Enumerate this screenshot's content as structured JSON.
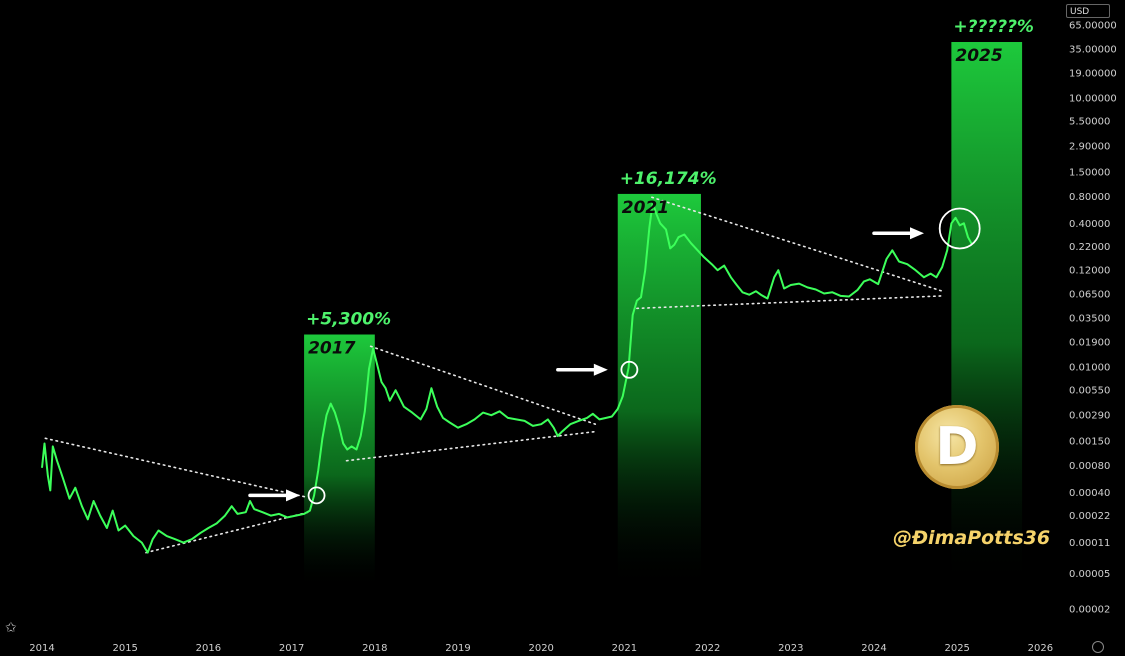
{
  "currency": "USD",
  "handle": "@ĐimaPotts36",
  "coin_letter": "D",
  "icons": [
    "tradingview-logo-icon",
    "dogecoin-logo-icon",
    "settings-icon",
    "arrow-right-icon"
  ],
  "colors": {
    "line": "#3cff5a",
    "band": "#19c23a",
    "background": "#000000",
    "handle": "#f5d36a"
  },
  "chart_data": {
    "type": "line",
    "yscale": "log",
    "ylim": [
      2e-05,
      65
    ],
    "xlim": [
      2014.0,
      2026.3
    ],
    "y_ticks": [
      "65.00000",
      "35.00000",
      "19.00000",
      "10.00000",
      "5.50000",
      "2.90000",
      "1.50000",
      "0.80000",
      "0.40000",
      "0.22000",
      "0.12000",
      "0.06500",
      "0.03500",
      "0.01900",
      "0.01000",
      "0.00550",
      "0.00290",
      "0.00150",
      "0.00080",
      "0.00040",
      "0.00022",
      "0.00011",
      "0.00005",
      "0.00002"
    ],
    "x_ticks": [
      "2014",
      "2015",
      "2016",
      "2017",
      "2018",
      "2019",
      "2020",
      "2021",
      "2022",
      "2023",
      "2024",
      "2025",
      "2026"
    ],
    "series": [
      {
        "points": [
          [
            2014.0,
            0.00075
          ],
          [
            2014.03,
            0.0014
          ],
          [
            2014.07,
            0.00062
          ],
          [
            2014.1,
            0.00042
          ],
          [
            2014.13,
            0.0013
          ],
          [
            2014.18,
            0.0009
          ],
          [
            2014.25,
            0.00058
          ],
          [
            2014.33,
            0.00034
          ],
          [
            2014.4,
            0.00045
          ],
          [
            2014.48,
            0.00028
          ],
          [
            2014.55,
            0.0002
          ],
          [
            2014.62,
            0.00032
          ],
          [
            2014.7,
            0.00022
          ],
          [
            2014.78,
            0.00016
          ],
          [
            2014.85,
            0.00025
          ],
          [
            2014.92,
            0.00015
          ],
          [
            2015.0,
            0.00017
          ],
          [
            2015.1,
            0.00013
          ],
          [
            2015.2,
            0.00011
          ],
          [
            2015.27,
            8.5e-05
          ],
          [
            2015.33,
            0.00012
          ],
          [
            2015.4,
            0.00015
          ],
          [
            2015.5,
            0.00013
          ],
          [
            2015.6,
            0.00012
          ],
          [
            2015.7,
            0.00011
          ],
          [
            2015.8,
            0.00012
          ],
          [
            2015.9,
            0.00014
          ],
          [
            2016.0,
            0.00016
          ],
          [
            2016.1,
            0.00018
          ],
          [
            2016.2,
            0.00022
          ],
          [
            2016.28,
            0.00028
          ],
          [
            2016.35,
            0.00023
          ],
          [
            2016.45,
            0.00024
          ],
          [
            2016.5,
            0.00032
          ],
          [
            2016.55,
            0.00026
          ],
          [
            2016.65,
            0.00024
          ],
          [
            2016.75,
            0.00022
          ],
          [
            2016.85,
            0.00023
          ],
          [
            2016.95,
            0.00021
          ],
          [
            2017.05,
            0.00022
          ],
          [
            2017.15,
            0.00023
          ],
          [
            2017.22,
            0.00025
          ],
          [
            2017.27,
            0.00037
          ],
          [
            2017.32,
            0.0007
          ],
          [
            2017.37,
            0.0016
          ],
          [
            2017.42,
            0.0029
          ],
          [
            2017.47,
            0.0039
          ],
          [
            2017.52,
            0.0031
          ],
          [
            2017.57,
            0.0022
          ],
          [
            2017.62,
            0.0014
          ],
          [
            2017.67,
            0.0012
          ],
          [
            2017.72,
            0.0013
          ],
          [
            2017.78,
            0.0012
          ],
          [
            2017.83,
            0.0017
          ],
          [
            2017.88,
            0.0032
          ],
          [
            2017.93,
            0.0095
          ],
          [
            2017.98,
            0.016
          ],
          [
            2018.03,
            0.0105
          ],
          [
            2018.08,
            0.0068
          ],
          [
            2018.13,
            0.0058
          ],
          [
            2018.18,
            0.0042
          ],
          [
            2018.25,
            0.0055
          ],
          [
            2018.35,
            0.0036
          ],
          [
            2018.45,
            0.0031
          ],
          [
            2018.55,
            0.0026
          ],
          [
            2018.62,
            0.0034
          ],
          [
            2018.68,
            0.0058
          ],
          [
            2018.75,
            0.0036
          ],
          [
            2018.82,
            0.0027
          ],
          [
            2018.9,
            0.0024
          ],
          [
            2019.0,
            0.0021
          ],
          [
            2019.1,
            0.0023
          ],
          [
            2019.2,
            0.0026
          ],
          [
            2019.3,
            0.0031
          ],
          [
            2019.4,
            0.0029
          ],
          [
            2019.5,
            0.0032
          ],
          [
            2019.6,
            0.0027
          ],
          [
            2019.7,
            0.0026
          ],
          [
            2019.8,
            0.0025
          ],
          [
            2019.9,
            0.0022
          ],
          [
            2020.0,
            0.0023
          ],
          [
            2020.08,
            0.0026
          ],
          [
            2020.15,
            0.0021
          ],
          [
            2020.2,
            0.0017
          ],
          [
            2020.25,
            0.0019
          ],
          [
            2020.35,
            0.0023
          ],
          [
            2020.45,
            0.0025
          ],
          [
            2020.55,
            0.0027
          ],
          [
            2020.62,
            0.003
          ],
          [
            2020.7,
            0.0026
          ],
          [
            2020.78,
            0.0027
          ],
          [
            2020.85,
            0.0028
          ],
          [
            2020.92,
            0.0034
          ],
          [
            2020.98,
            0.0047
          ],
          [
            2021.05,
            0.0098
          ],
          [
            2021.1,
            0.038
          ],
          [
            2021.15,
            0.055
          ],
          [
            2021.2,
            0.06
          ],
          [
            2021.25,
            0.12
          ],
          [
            2021.3,
            0.36
          ],
          [
            2021.34,
            0.68
          ],
          [
            2021.38,
            0.52
          ],
          [
            2021.43,
            0.4
          ],
          [
            2021.5,
            0.34
          ],
          [
            2021.55,
            0.21
          ],
          [
            2021.6,
            0.23
          ],
          [
            2021.65,
            0.28
          ],
          [
            2021.72,
            0.3
          ],
          [
            2021.8,
            0.24
          ],
          [
            2021.88,
            0.2
          ],
          [
            2021.95,
            0.17
          ],
          [
            2022.05,
            0.14
          ],
          [
            2022.12,
            0.12
          ],
          [
            2022.2,
            0.135
          ],
          [
            2022.28,
            0.1
          ],
          [
            2022.35,
            0.082
          ],
          [
            2022.42,
            0.068
          ],
          [
            2022.5,
            0.064
          ],
          [
            2022.58,
            0.07
          ],
          [
            2022.65,
            0.063
          ],
          [
            2022.72,
            0.058
          ],
          [
            2022.8,
            0.1
          ],
          [
            2022.85,
            0.12
          ],
          [
            2022.92,
            0.075
          ],
          [
            2023.0,
            0.082
          ],
          [
            2023.1,
            0.085
          ],
          [
            2023.2,
            0.077
          ],
          [
            2023.3,
            0.073
          ],
          [
            2023.4,
            0.066
          ],
          [
            2023.5,
            0.068
          ],
          [
            2023.6,
            0.062
          ],
          [
            2023.7,
            0.061
          ],
          [
            2023.8,
            0.072
          ],
          [
            2023.88,
            0.09
          ],
          [
            2023.95,
            0.095
          ],
          [
            2024.05,
            0.084
          ],
          [
            2024.15,
            0.16
          ],
          [
            2024.22,
            0.2
          ],
          [
            2024.3,
            0.15
          ],
          [
            2024.4,
            0.14
          ],
          [
            2024.5,
            0.12
          ],
          [
            2024.6,
            0.1
          ],
          [
            2024.68,
            0.11
          ],
          [
            2024.75,
            0.1
          ],
          [
            2024.82,
            0.13
          ],
          [
            2024.88,
            0.2
          ],
          [
            2024.93,
            0.4
          ],
          [
            2024.98,
            0.46
          ],
          [
            2025.03,
            0.38
          ],
          [
            2025.08,
            0.4
          ],
          [
            2025.13,
            0.28
          ],
          [
            2025.18,
            0.23
          ]
        ]
      }
    ],
    "cycles": [
      {
        "label": "2017",
        "gain": "+5,300%",
        "x0": 2017.15,
        "x1": 2018.0,
        "ytop": 0.023
      },
      {
        "label": "2021",
        "gain": "+16,174%",
        "x0": 2020.92,
        "x1": 2021.92,
        "ytop": 0.85
      },
      {
        "label": "2025",
        "gain": "+?????%",
        "x0": 2024.93,
        "x1": 2025.78,
        "ytop": 42
      }
    ],
    "trendlines": [
      [
        [
          2014.04,
          0.0016
        ],
        [
          2017.2,
          0.00035
        ]
      ],
      [
        [
          2015.25,
          8.5e-05
        ],
        [
          2017.2,
          0.00024
        ]
      ],
      [
        [
          2017.95,
          0.017
        ],
        [
          2020.65,
          0.0023
        ]
      ],
      [
        [
          2017.66,
          0.0009
        ],
        [
          2020.65,
          0.0019
        ]
      ],
      [
        [
          2021.33,
          0.78
        ],
        [
          2024.82,
          0.07
        ]
      ],
      [
        [
          2021.15,
          0.045
        ],
        [
          2024.82,
          0.062
        ]
      ]
    ],
    "highlight_circles": [
      [
        2017.3,
        0.00037
      ],
      [
        2021.06,
        0.0093
      ],
      [
        2025.03,
        0.35
      ]
    ],
    "arrows": [
      [
        2016.5,
        0.00037
      ],
      [
        2020.2,
        0.0093
      ],
      [
        2024.0,
        0.31
      ]
    ]
  }
}
